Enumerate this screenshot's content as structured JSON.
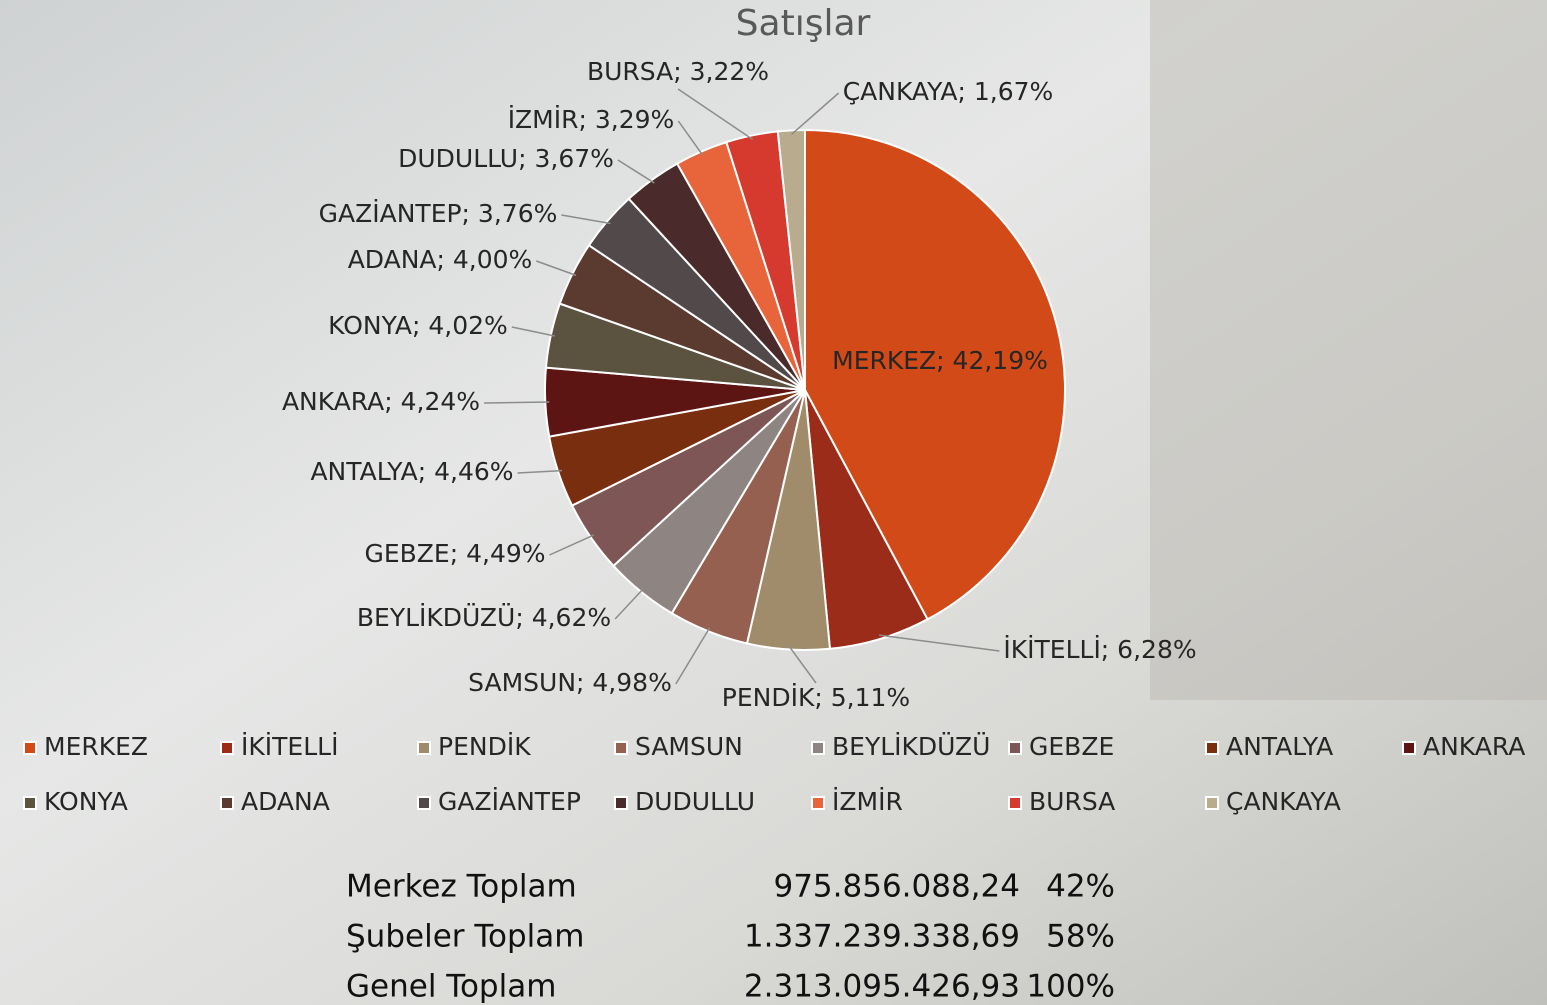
{
  "chart_data": {
    "type": "pie",
    "title": "Satışlar",
    "categories": [
      "MERKEZ",
      "İKİTELLİ",
      "PENDİK",
      "SAMSUN",
      "BEYLİKDÜZÜ",
      "GEBZE",
      "ANTALYA",
      "ANKARA",
      "KONYA",
      "ADANA",
      "GAZİANTEP",
      "DUDULLU",
      "İZMİR",
      "BURSA",
      "ÇANKAYA"
    ],
    "values": [
      42.19,
      6.28,
      5.11,
      4.98,
      4.62,
      4.49,
      4.46,
      4.24,
      4.02,
      4.0,
      3.76,
      3.67,
      3.29,
      3.22,
      1.67
    ],
    "value_labels": [
      "MERKEZ; 42,19%",
      "İKİTELLİ; 6,28%",
      "PENDİK; 5,11%",
      "SAMSUN; 4,98%",
      "BEYLİKDÜZÜ; 4,62%",
      "GEBZE; 4,49%",
      "ANTALYA; 4,46%",
      "ANKARA; 4,24%",
      "KONYA; 4,02%",
      "ADANA; 4,00%",
      "GAZİANTEP; 3,76%",
      "DUDULLU; 3,67%",
      "İZMİR; 3,29%",
      "BURSA; 3,22%",
      "ÇANKAYA; 1,67%"
    ],
    "colors": [
      "#d24a17",
      "#9b2c1a",
      "#a08c6a",
      "#956050",
      "#8e8482",
      "#7e5656",
      "#7a2e10",
      "#5c1512",
      "#5b5240",
      "#5b3a30",
      "#524a4a",
      "#4a2a2a",
      "#e8643a",
      "#d63a2e",
      "#b8ab8e"
    ],
    "legend": "bottom"
  },
  "table": {
    "rows": [
      [
        "Merkez Toplam",
        "975.856.088,24",
        "42%"
      ],
      [
        "Şubeler Toplam",
        "1.337.239.338,69",
        "58%"
      ],
      [
        "Genel Toplam",
        "2.313.095.426,93",
        "100%"
      ]
    ]
  }
}
